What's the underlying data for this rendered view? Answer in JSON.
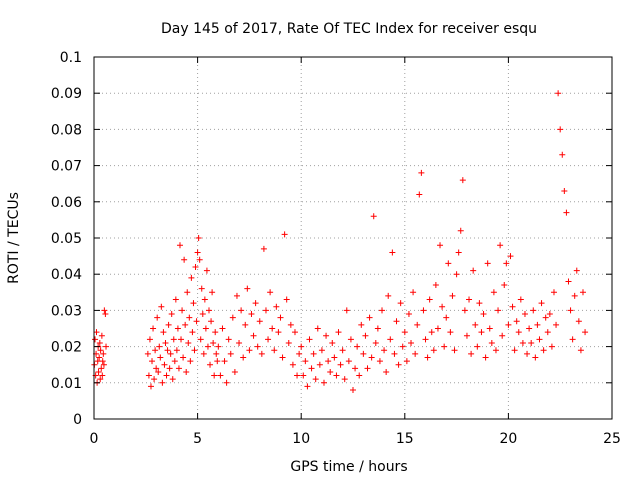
{
  "chart_data": {
    "type": "scatter",
    "title": "Day 145 of 2017, Rate Of TEC Index for receiver esqu",
    "xlabel": "GPS time / hours",
    "ylabel": "ROTI / TECUs",
    "xlim": [
      0,
      25
    ],
    "ylim": [
      0,
      0.1
    ],
    "x_ticks": [
      0,
      5,
      10,
      15,
      20,
      25
    ],
    "y_ticks": [
      0,
      0.01,
      0.02,
      0.03,
      0.04,
      0.05,
      0.06,
      0.07,
      0.08,
      0.09,
      0.1
    ],
    "x_tick_labels": [
      "0",
      "5",
      "10",
      "15",
      "20",
      "25"
    ],
    "y_tick_labels": [
      "0",
      "0.01",
      "0.02",
      "0.03",
      "0.04",
      "0.05",
      "0.06",
      "0.07",
      "0.08",
      "0.09",
      "0.1"
    ],
    "grid": true,
    "marker": "+",
    "color": "#ff0000",
    "series": [
      {
        "x": [
          0.02,
          0.05,
          0.08,
          0.1,
          0.12,
          0.15,
          0.18,
          0.2,
          0.22,
          0.25,
          0.28,
          0.3,
          0.32,
          0.35,
          0.38,
          0.4,
          0.42,
          0.45,
          0.48,
          0.5,
          0.55,
          0.58,
          2.6,
          2.65,
          2.7,
          2.75,
          2.8,
          2.85,
          2.9,
          2.95,
          3.0,
          3.05,
          3.1,
          3.15,
          3.2,
          3.25,
          3.3,
          3.35,
          3.4,
          3.45,
          3.5,
          3.55,
          3.6,
          3.65,
          3.7,
          3.75,
          3.8,
          3.85,
          3.9,
          3.95,
          4.0,
          4.05,
          4.1,
          4.15,
          4.2,
          4.25,
          4.3,
          4.35,
          4.4,
          4.45,
          4.5,
          4.55,
          4.6,
          4.65,
          4.7,
          4.75,
          4.8,
          4.85,
          4.9,
          4.95,
          5.0,
          5.05,
          5.1,
          5.15,
          5.2,
          5.25,
          5.3,
          5.35,
          5.4,
          5.45,
          5.5,
          5.55,
          5.6,
          5.65,
          5.7,
          5.75,
          5.8,
          5.85,
          5.9,
          5.95,
          6.0,
          6.1,
          6.2,
          6.3,
          6.4,
          6.5,
          6.6,
          6.7,
          6.8,
          6.9,
          7.0,
          7.1,
          7.2,
          7.3,
          7.4,
          7.5,
          7.6,
          7.7,
          7.8,
          7.9,
          8.0,
          8.1,
          8.2,
          8.3,
          8.4,
          8.5,
          8.6,
          8.7,
          8.8,
          8.9,
          9.0,
          9.1,
          9.2,
          9.3,
          9.4,
          9.5,
          9.6,
          9.7,
          9.8,
          9.9,
          10.0,
          10.1,
          10.2,
          10.3,
          10.4,
          10.5,
          10.6,
          10.7,
          10.8,
          10.9,
          11.0,
          11.1,
          11.2,
          11.3,
          11.4,
          11.5,
          11.6,
          11.7,
          11.8,
          11.9,
          12.0,
          12.1,
          12.2,
          12.3,
          12.4,
          12.5,
          12.6,
          12.7,
          12.8,
          12.9,
          13.0,
          13.1,
          13.2,
          13.3,
          13.4,
          13.5,
          13.6,
          13.7,
          13.8,
          13.9,
          14.0,
          14.1,
          14.2,
          14.3,
          14.4,
          14.5,
          14.6,
          14.7,
          14.8,
          14.9,
          15.0,
          15.1,
          15.2,
          15.3,
          15.4,
          15.5,
          15.6,
          15.7,
          15.8,
          15.9,
          16.0,
          16.1,
          16.2,
          16.3,
          16.4,
          16.5,
          16.6,
          16.7,
          16.8,
          16.9,
          17.0,
          17.1,
          17.2,
          17.3,
          17.4,
          17.5,
          17.6,
          17.7,
          17.8,
          17.9,
          18.0,
          18.1,
          18.2,
          18.3,
          18.4,
          18.5,
          18.6,
          18.7,
          18.8,
          18.9,
          19.0,
          19.1,
          19.2,
          19.3,
          19.4,
          19.5,
          19.6,
          19.7,
          19.8,
          19.9,
          20.0,
          20.1,
          20.2,
          20.3,
          20.4,
          20.5,
          20.6,
          20.7,
          20.8,
          20.9,
          21.0,
          21.1,
          21.2,
          21.3,
          21.4,
          21.5,
          21.6,
          21.7,
          21.8,
          21.9,
          22.0,
          22.1,
          22.2,
          22.3,
          22.4,
          22.5,
          22.6,
          22.7,
          22.8,
          22.9,
          23.0,
          23.1,
          23.2,
          23.3,
          23.4,
          23.5,
          23.6,
          23.7
        ],
        "y": [
          0.015,
          0.022,
          0.012,
          0.018,
          0.024,
          0.01,
          0.016,
          0.02,
          0.013,
          0.017,
          0.021,
          0.011,
          0.019,
          0.014,
          0.023,
          0.012,
          0.016,
          0.018,
          0.015,
          0.03,
          0.029,
          0.02,
          0.018,
          0.012,
          0.022,
          0.009,
          0.016,
          0.025,
          0.011,
          0.019,
          0.014,
          0.028,
          0.013,
          0.02,
          0.017,
          0.031,
          0.01,
          0.024,
          0.015,
          0.021,
          0.012,
          0.019,
          0.026,
          0.014,
          0.018,
          0.029,
          0.011,
          0.022,
          0.016,
          0.033,
          0.019,
          0.025,
          0.014,
          0.048,
          0.022,
          0.03,
          0.017,
          0.044,
          0.026,
          0.013,
          0.035,
          0.021,
          0.028,
          0.016,
          0.039,
          0.024,
          0.032,
          0.019,
          0.042,
          0.027,
          0.046,
          0.05,
          0.044,
          0.022,
          0.036,
          0.029,
          0.018,
          0.033,
          0.025,
          0.041,
          0.02,
          0.03,
          0.015,
          0.027,
          0.035,
          0.021,
          0.012,
          0.024,
          0.018,
          0.016,
          0.02,
          0.012,
          0.025,
          0.016,
          0.01,
          0.022,
          0.018,
          0.028,
          0.013,
          0.034,
          0.021,
          0.03,
          0.017,
          0.026,
          0.036,
          0.019,
          0.029,
          0.023,
          0.032,
          0.02,
          0.027,
          0.018,
          0.047,
          0.03,
          0.022,
          0.035,
          0.025,
          0.019,
          0.031,
          0.024,
          0.028,
          0.017,
          0.051,
          0.033,
          0.021,
          0.026,
          0.015,
          0.024,
          0.012,
          0.018,
          0.02,
          0.012,
          0.016,
          0.009,
          0.022,
          0.014,
          0.018,
          0.011,
          0.025,
          0.015,
          0.019,
          0.01,
          0.023,
          0.016,
          0.013,
          0.021,
          0.017,
          0.012,
          0.024,
          0.015,
          0.019,
          0.011,
          0.03,
          0.016,
          0.022,
          0.008,
          0.014,
          0.02,
          0.012,
          0.026,
          0.018,
          0.023,
          0.014,
          0.028,
          0.017,
          0.056,
          0.021,
          0.025,
          0.016,
          0.03,
          0.019,
          0.013,
          0.034,
          0.022,
          0.046,
          0.018,
          0.027,
          0.015,
          0.032,
          0.02,
          0.024,
          0.016,
          0.029,
          0.021,
          0.035,
          0.018,
          0.026,
          0.062,
          0.068,
          0.03,
          0.022,
          0.017,
          0.033,
          0.024,
          0.019,
          0.037,
          0.025,
          0.048,
          0.031,
          0.02,
          0.028,
          0.043,
          0.024,
          0.034,
          0.019,
          0.04,
          0.046,
          0.052,
          0.066,
          0.03,
          0.023,
          0.033,
          0.018,
          0.041,
          0.026,
          0.02,
          0.032,
          0.024,
          0.029,
          0.017,
          0.043,
          0.025,
          0.021,
          0.035,
          0.019,
          0.03,
          0.048,
          0.023,
          0.037,
          0.043,
          0.026,
          0.045,
          0.031,
          0.019,
          0.027,
          0.024,
          0.033,
          0.021,
          0.029,
          0.018,
          0.025,
          0.021,
          0.03,
          0.017,
          0.026,
          0.022,
          0.032,
          0.019,
          0.028,
          0.024,
          0.029,
          0.02,
          0.035,
          0.026,
          0.09,
          0.08,
          0.073,
          0.063,
          0.057,
          0.038,
          0.03,
          0.022,
          0.034,
          0.041,
          0.027,
          0.019,
          0.035,
          0.024
        ]
      }
    ]
  }
}
